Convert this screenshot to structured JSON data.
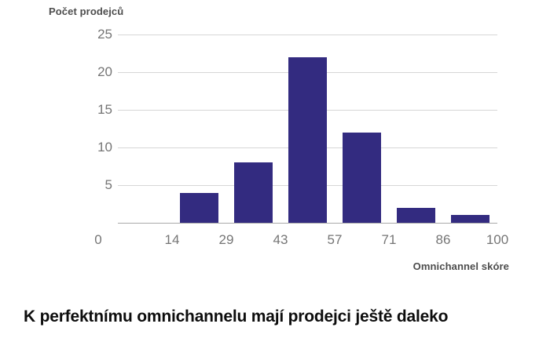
{
  "chart": {
    "y_axis_title": "Počet prodejců",
    "x_axis_title": "Omnichannel skóre",
    "bar_color": "#332b80",
    "gridline_color": "#d6d6d6",
    "baseline_color": "#a9a9a9",
    "tick_label_color": "#757575",
    "axis_title_color": "#4d4d4d"
  },
  "chart_data": {
    "type": "bar",
    "title": "K perfektnímu omnichannelu mají prodejci ještě daleko",
    "xlabel": "Omnichannel skóre",
    "ylabel": "Počet prodejců",
    "bins": [
      "0–14",
      "14–29",
      "29–43",
      "43–57",
      "57–71",
      "71–86",
      "86–100"
    ],
    "values": [
      0,
      4,
      8,
      22,
      12,
      2,
      1
    ],
    "x_tick_labels": [
      "0",
      "14",
      "29",
      "43",
      "57",
      "71",
      "86",
      "100"
    ],
    "y_tick_labels": [
      25,
      20,
      15,
      10,
      5
    ],
    "ylim": [
      0,
      25
    ],
    "grid": true,
    "legend": false
  },
  "caption": {
    "title": "K perfektnímu omnichannelu mají prodejci ještě daleko"
  }
}
